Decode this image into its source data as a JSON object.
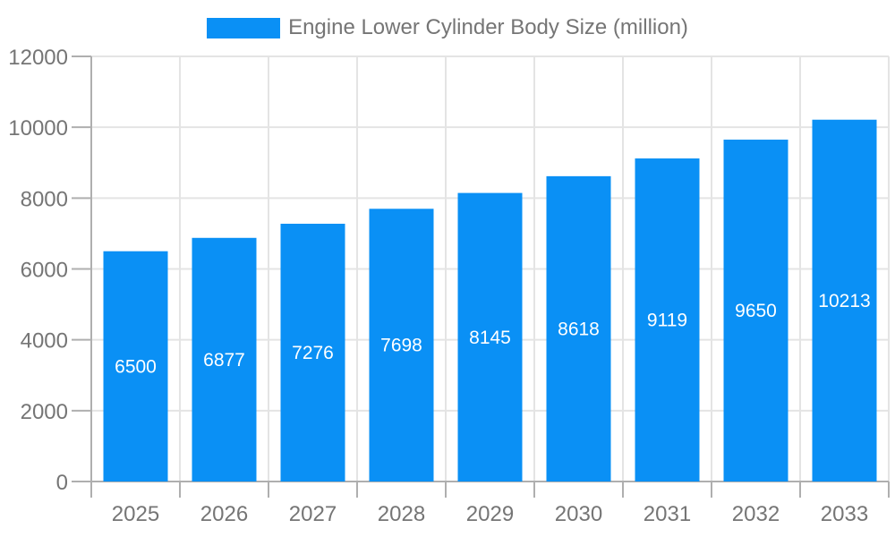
{
  "chart_data": {
    "type": "bar",
    "title": "Engine Lower Cylinder Body Size (million)",
    "legend": {
      "label": "Engine Lower Cylinder Body Size (million)",
      "position": "top"
    },
    "categories": [
      "2025",
      "2026",
      "2027",
      "2028",
      "2029",
      "2030",
      "2031",
      "2032",
      "2033"
    ],
    "series": [
      {
        "name": "Engine Lower Cylinder Body Size (million)",
        "values": [
          6500,
          6877,
          7276,
          7698,
          8145,
          8618,
          9119,
          9650,
          10213
        ]
      }
    ],
    "value_labels": [
      "6500",
      "6877",
      "7276",
      "7698",
      "8145",
      "8618",
      "9119",
      "9650",
      "10213"
    ],
    "xlabel": "",
    "ylabel": "",
    "ylim": [
      0,
      12000
    ],
    "yticks": [
      0,
      2000,
      4000,
      6000,
      8000,
      10000,
      12000
    ],
    "ytick_labels": [
      "0",
      "2000",
      "4000",
      "6000",
      "8000",
      "10000",
      "12000"
    ],
    "grid": true,
    "legend_position": "top",
    "colors": {
      "bar": "#0A90F5",
      "value_label": "#FFFFFF",
      "axis_text": "#757575",
      "grid_line": "#E4E4E4",
      "axis_line": "#AFAFAF",
      "background": "#FFFFFF"
    }
  }
}
